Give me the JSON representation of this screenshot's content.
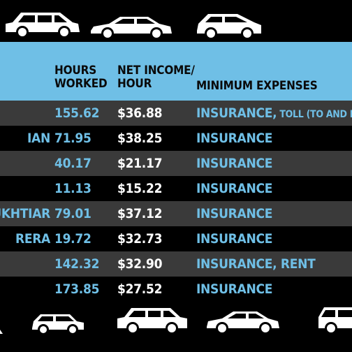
{
  "header": {
    "hours_worked": [
      "HOURS",
      "WORKED"
    ],
    "net_income_hour": [
      "NET INCOME/",
      "HOUR"
    ],
    "minimum_expenses": "MINIMUM EXPENSES"
  },
  "rows": [
    {
      "name": "",
      "hours": "155.62",
      "income": "$36.88",
      "expenses_main": "INSURANCE,",
      "expenses_small": " TOLL (TO AND FROM"
    },
    {
      "name": "IAN",
      "hours": "71.95",
      "income": "$38.25",
      "expenses_main": "INSURANCE",
      "expenses_small": ""
    },
    {
      "name": "",
      "hours": "40.17",
      "income": "$21.17",
      "expenses_main": "INSURANCE",
      "expenses_small": ""
    },
    {
      "name": "",
      "hours": "11.13",
      "income": "$15.22",
      "expenses_main": "INSURANCE",
      "expenses_small": ""
    },
    {
      "name": "UKHTIAR",
      "hours": "79.01",
      "income": "$37.12",
      "expenses_main": "INSURANCE",
      "expenses_small": ""
    },
    {
      "name": "RERA",
      "hours": "19.72",
      "income": "$32.73",
      "expenses_main": "INSURANCE",
      "expenses_small": ""
    },
    {
      "name": "",
      "hours": "142.32",
      "income": "$32.90",
      "expenses_main": "INSURANCE, RENT",
      "expenses_small": ""
    },
    {
      "name": "",
      "hours": "173.85",
      "income": "$27.52",
      "expenses_main": "INSURANCE",
      "expenses_small": ""
    }
  ],
  "colors": {
    "accent": "#6fbfe6",
    "row_alt": "#3a3a3a",
    "background": "#000000"
  },
  "icons": [
    "suv-icon",
    "sedan-icon",
    "hatchback-icon",
    "mini-icon",
    "wagon-icon"
  ]
}
